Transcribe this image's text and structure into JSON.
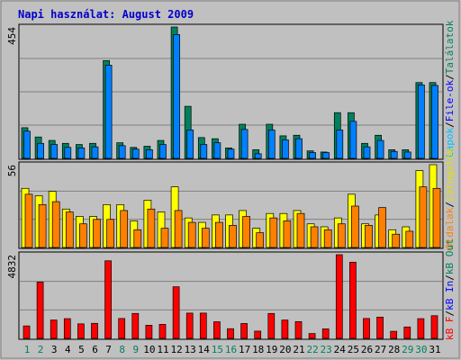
{
  "title": "Napi használat: August 2009",
  "colors": {
    "background": "#c0c0c0",
    "frame": "#ffffff",
    "title": "#0000cc",
    "hits": "#00805c",
    "files": "#0080ff",
    "sites": "#ffff00",
    "visits": "#ff8000",
    "pages": "#00c0ff",
    "kbytes": "#ff0000",
    "kb_in": "#0000ff",
    "kb_out": "#00805c",
    "weekend_day": "#00805c"
  },
  "side_labels": {
    "top": [
      "Találatok",
      "/",
      "File-ok",
      "/",
      "Lapok"
    ],
    "middle": [
      "Látogatók",
      "/",
      "Oldalak"
    ],
    "bottom": [
      "kB Out",
      "/",
      "kB In",
      "/",
      "kB F"
    ]
  },
  "chart_data": [
    {
      "type": "bar",
      "panel": "top",
      "ylabel": "454",
      "ylim": [
        0,
        454
      ],
      "categories": [
        "1",
        "2",
        "3",
        "4",
        "5",
        "6",
        "7",
        "8",
        "9",
        "10",
        "11",
        "12",
        "13",
        "14",
        "15",
        "16",
        "17",
        "18",
        "19",
        "20",
        "21",
        "22",
        "23",
        "24",
        "25",
        "26",
        "27",
        "28",
        "29",
        "30",
        "31"
      ],
      "weekend_days": [
        "1",
        "2",
        "8",
        "9",
        "15",
        "16",
        "22",
        "23",
        "29",
        "30"
      ],
      "series": [
        {
          "name": "Találatok",
          "values": [
            106,
            74,
            62,
            52,
            48,
            52,
            338,
            54,
            38,
            42,
            62,
            454,
            180,
            72,
            68,
            36,
            118,
            30,
            118,
            78,
            80,
            26,
            22,
            158,
            158,
            52,
            80,
            30,
            30,
            262,
            262
          ]
        },
        {
          "name": "File-ok",
          "values": [
            94,
            52,
            48,
            38,
            36,
            40,
            322,
            44,
            32,
            30,
            48,
            428,
            98,
            48,
            54,
            32,
            100,
            16,
            98,
            64,
            68,
            20,
            20,
            98,
            128,
            40,
            62,
            24,
            22,
            254,
            252
          ]
        },
        {
          "name": "Lapok",
          "values": [
            0,
            0,
            0,
            0,
            0,
            0,
            0,
            0,
            0,
            0,
            0,
            0,
            0,
            0,
            0,
            0,
            0,
            0,
            0,
            0,
            0,
            0,
            0,
            0,
            0,
            0,
            0,
            0,
            0,
            0,
            0
          ]
        }
      ]
    },
    {
      "type": "bar",
      "panel": "middle",
      "ylabel": "56",
      "ylim": [
        0,
        56
      ],
      "categories": [
        "1",
        "2",
        "3",
        "4",
        "5",
        "6",
        "7",
        "8",
        "9",
        "10",
        "11",
        "12",
        "13",
        "14",
        "15",
        "16",
        "17",
        "18",
        "19",
        "20",
        "21",
        "22",
        "23",
        "24",
        "25",
        "26",
        "27",
        "28",
        "29",
        "30",
        "31"
      ],
      "series": [
        {
          "name": "Látogatók",
          "values": [
            40,
            35,
            38,
            26,
            21,
            21,
            29,
            29,
            18,
            32,
            24,
            41,
            20,
            17,
            22,
            22,
            25,
            13,
            23,
            23,
            25,
            16,
            14,
            20,
            36,
            16,
            22,
            12,
            14,
            52,
            56
          ]
        },
        {
          "name": "Oldalak",
          "values": [
            36,
            29,
            31,
            24,
            16,
            19,
            19,
            25,
            12,
            26,
            13,
            25,
            17,
            13,
            17,
            15,
            21,
            10,
            20,
            18,
            23,
            14,
            12,
            16,
            28,
            15,
            27,
            9,
            11,
            41,
            40
          ]
        }
      ]
    },
    {
      "type": "bar",
      "panel": "bottom",
      "ylabel": "4832",
      "ylim": [
        0,
        4832
      ],
      "categories": [
        "1",
        "2",
        "3",
        "4",
        "5",
        "6",
        "7",
        "8",
        "9",
        "10",
        "11",
        "12",
        "13",
        "14",
        "15",
        "16",
        "17",
        "18",
        "19",
        "20",
        "21",
        "22",
        "23",
        "24",
        "25",
        "26",
        "27",
        "28",
        "29",
        "30",
        "31"
      ],
      "series": [
        {
          "name": "kB F",
          "values": [
            0,
            0,
            0,
            0,
            0,
            0,
            0,
            0,
            0,
            0,
            0,
            0,
            0,
            0,
            0,
            0,
            0,
            0,
            0,
            0,
            0,
            0,
            0,
            0,
            0,
            0,
            0,
            0,
            0,
            0,
            0
          ]
        },
        {
          "name": "kB In",
          "values": [
            0,
            0,
            0,
            0,
            0,
            0,
            0,
            0,
            0,
            0,
            0,
            0,
            0,
            0,
            0,
            0,
            0,
            0,
            0,
            0,
            0,
            0,
            0,
            0,
            0,
            0,
            0,
            0,
            0,
            0,
            0
          ]
        },
        {
          "name": "kB Out",
          "values": [
            720,
            3250,
            1060,
            1140,
            840,
            870,
            4480,
            1150,
            1440,
            760,
            810,
            2980,
            1460,
            1460,
            960,
            560,
            860,
            420,
            1440,
            1060,
            970,
            280,
            550,
            4832,
            4400,
            1150,
            1230,
            410,
            660,
            1140,
            1310
          ]
        }
      ]
    }
  ]
}
